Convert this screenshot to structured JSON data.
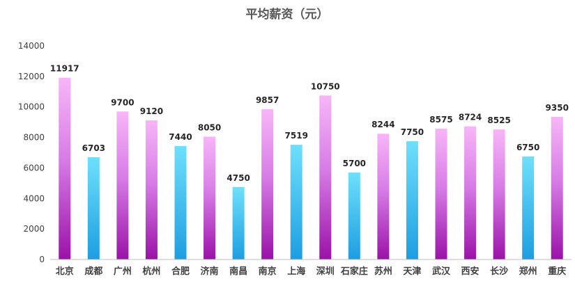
{
  "chart_data": {
    "type": "bar",
    "title": "平均薪资（元）",
    "xlabel": "",
    "ylabel": "",
    "ylim": [
      0,
      14000
    ],
    "yticks": [
      0,
      2000,
      4000,
      6000,
      8000,
      10000,
      12000,
      14000
    ],
    "grid": false,
    "legend": "none",
    "categories": [
      "北京",
      "成都",
      "广州",
      "杭州",
      "合肥",
      "济南",
      "南昌",
      "南京",
      "上海",
      "深圳",
      "石家庄",
      "苏州",
      "天津",
      "武汉",
      "西安",
      "长沙",
      "郑州",
      "重庆"
    ],
    "values": [
      11917,
      6703,
      9700,
      9120,
      7440,
      8050,
      4750,
      9857,
      7519,
      10750,
      5700,
      8244,
      7750,
      8575,
      8724,
      8525,
      6750,
      9350
    ],
    "bar_styles": [
      "pink",
      "blue",
      "pink",
      "pink",
      "blue",
      "pink",
      "blue",
      "pink",
      "blue",
      "pink",
      "blue",
      "pink",
      "blue",
      "pink",
      "pink",
      "pink",
      "blue",
      "pink"
    ],
    "colors": {
      "pink_top": "#f7b6f7",
      "pink_mid": "#d77ce6",
      "pink_bottom": "#9a12a8",
      "blue_top": "#6fe0fb",
      "blue_bottom": "#1d9ee2",
      "axis": "#bfbfbf"
    }
  }
}
